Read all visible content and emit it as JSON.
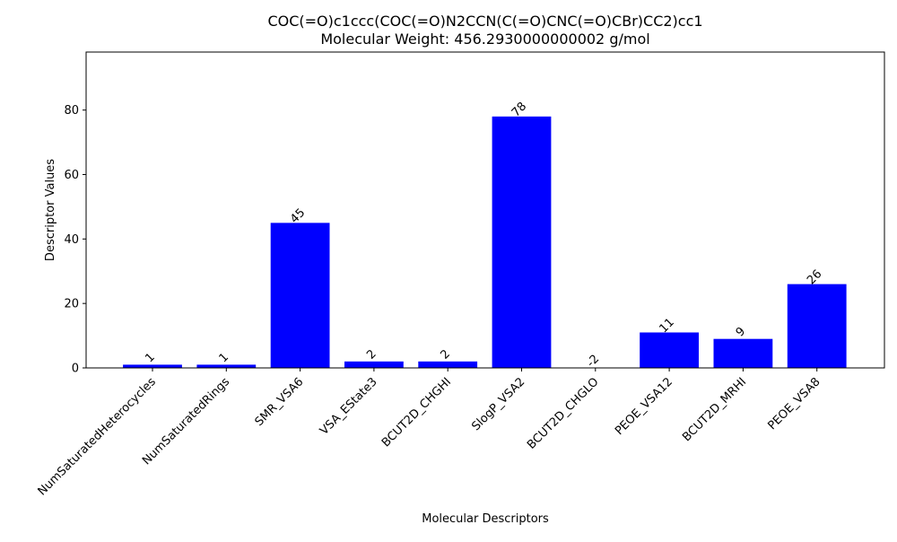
{
  "chart_data": {
    "type": "bar",
    "title": "COC(=O)c1ccc(COC(=O)N2CCN(C(=O)CNC(=O)CBr)CC2)cc1",
    "subtitle": "Molecular Weight: 456.2930000000002 g/mol",
    "xlabel": "Molecular Descriptors",
    "ylabel": "Descriptor Values",
    "categories": [
      "NumSaturatedHeterocycles",
      "NumSaturatedRings",
      "SMR_VSA6",
      "VSA_EState3",
      "BCUT2D_CHGHI",
      "SlogP_VSA2",
      "BCUT2D_CHGLO",
      "PEOE_VSA12",
      "BCUT2D_MRHI",
      "PEOE_VSA8"
    ],
    "values": [
      1,
      1,
      45,
      2,
      2,
      78,
      -2,
      11,
      9,
      26
    ],
    "value_labels": [
      "1",
      "1",
      "45",
      "2",
      "2",
      "78",
      "-2",
      "11",
      "9",
      "26"
    ],
    "yticks": [
      0,
      20,
      40,
      60,
      80
    ],
    "ylim": [
      0,
      98
    ],
    "bar_color": "#0000ff",
    "grid": false
  }
}
